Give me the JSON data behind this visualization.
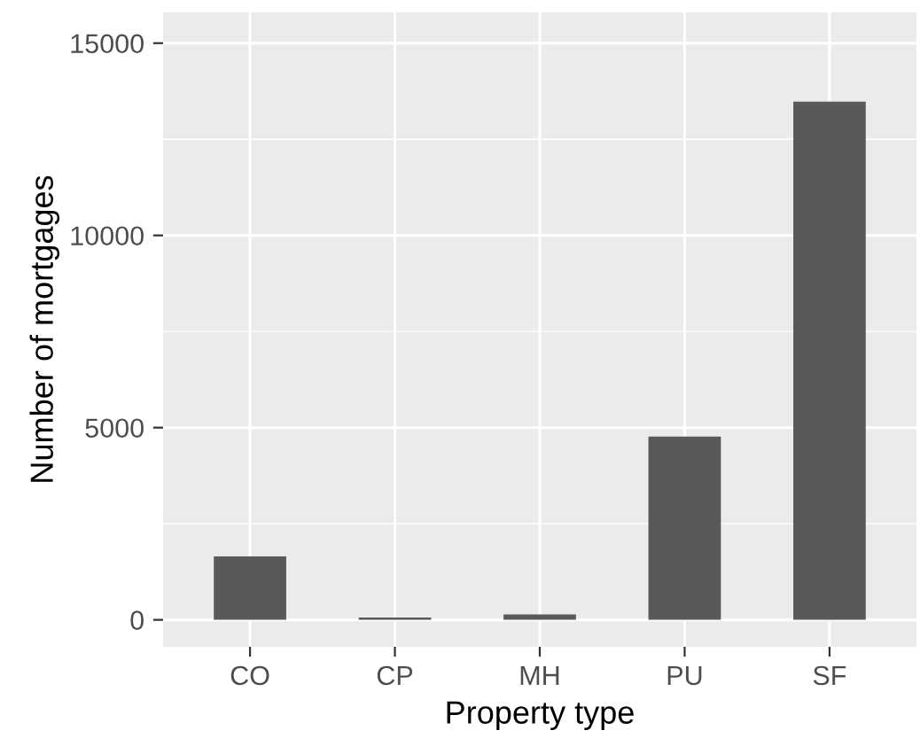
{
  "chart_data": {
    "type": "bar",
    "xlabel": "Property type",
    "ylabel": "Number of mortgages",
    "categories": [
      "CO",
      "CP",
      "MH",
      "PU",
      "SF"
    ],
    "values": [
      1650,
      60,
      140,
      4770,
      13480
    ],
    "color": "#595959",
    "ylim": [
      -700,
      15800
    ],
    "yticks": [
      0,
      5000,
      10000,
      15000
    ],
    "grid": true
  }
}
